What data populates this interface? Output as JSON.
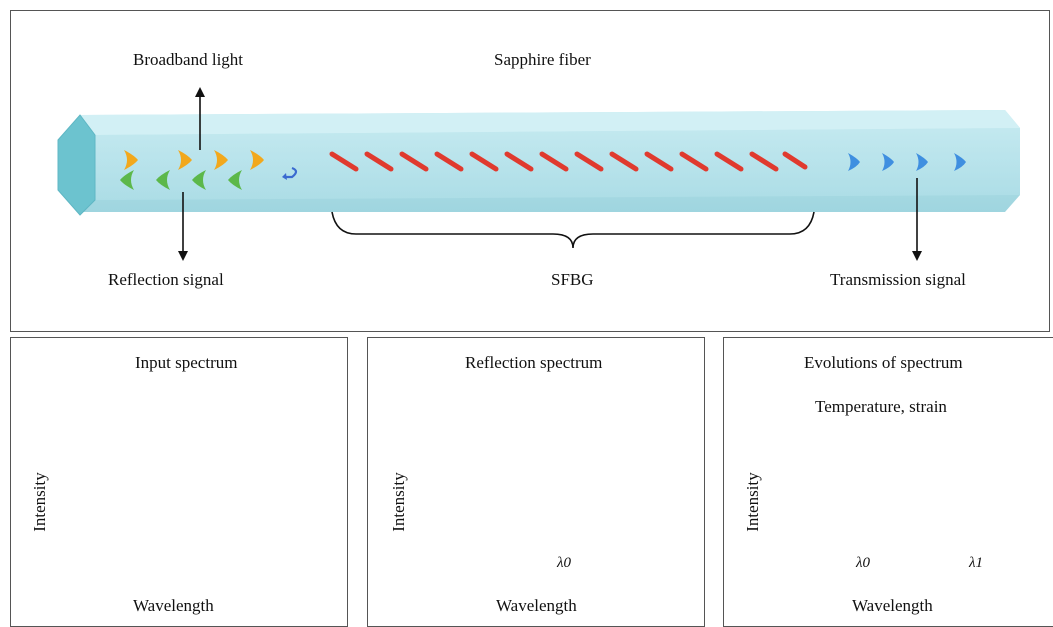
{
  "top_panel": {
    "broadband_label": "Broadband light",
    "fiber_label": "Sapphire fiber",
    "reflection_label": "Reflection signal",
    "grating_label": "SFBG",
    "transmission_label": "Transmission signal"
  },
  "panels": {
    "input": {
      "title": "Input spectrum",
      "ylabel": "Intensity",
      "xlabel": "Wavelength"
    },
    "reflection": {
      "title": "Reflection spectrum",
      "ylabel": "Intensity",
      "xlabel": "Wavelength",
      "marker": "λ0"
    },
    "evolution": {
      "title": "Evolutions of spectrum",
      "ylabel": "Intensity",
      "xlabel": "Wavelength",
      "arrow_label": "Temperature, strain",
      "marker0": "λ0",
      "marker1": "λ1"
    }
  },
  "colors": {
    "fiber": "#a9dde6",
    "grating": "#e03a2e",
    "blue_curve": "#7aa7d8",
    "red_curve": "#e0353d"
  }
}
